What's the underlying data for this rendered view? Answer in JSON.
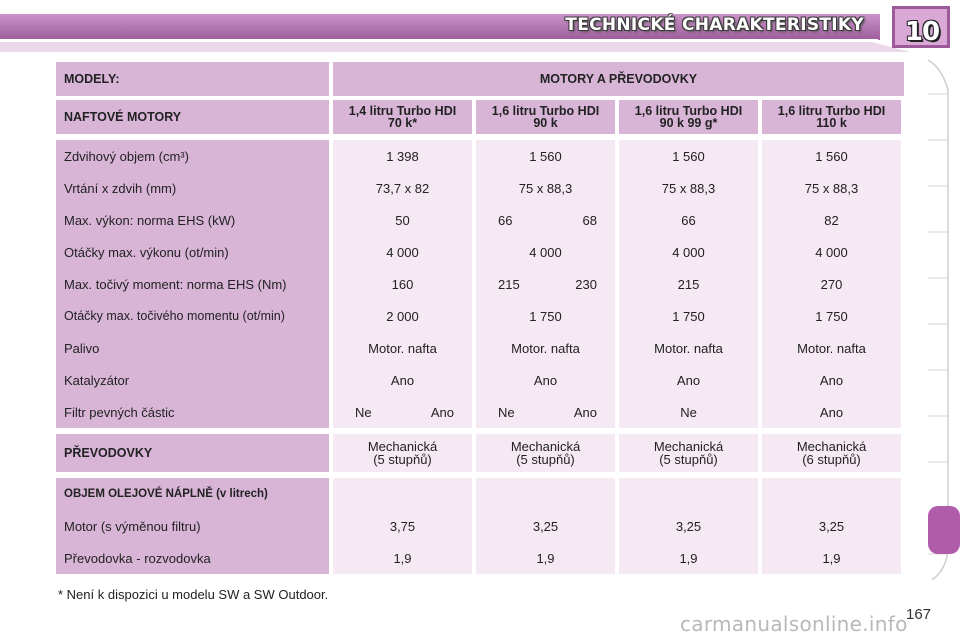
{
  "header": {
    "title": "TECHNICKÉ CHARAKTERISTIKY",
    "chapter_number": "10",
    "band_color": "#b77db6"
  },
  "table": {
    "models_label": "MODELY:",
    "models_value": "MOTORY A PŘEVODOVKY",
    "engines_label": "NAFTOVÉ MOTORY",
    "engines": [
      {
        "line1": "1,4 litru Turbo HDI",
        "line2": "70 k*"
      },
      {
        "line1": "1,6 litru Turbo HDI",
        "line2": "90 k"
      },
      {
        "line1": "1,6 litru Turbo HDI",
        "line2": "90 k 99 g*"
      },
      {
        "line1": "1,6 litru Turbo HDI",
        "line2": "110 k"
      }
    ],
    "spec_labels": [
      "Zdvihový objem (cm³)",
      "Vrtání x zdvih (mm)",
      "Max. výkon: norma EHS (kW)",
      "Otáčky max. výkonu (ot/min)",
      "Max. točivý moment: norma EHS (Nm)",
      "Otáčky max. točivého momentu (ot/min)",
      "Palivo",
      "Katalyzátor",
      "Filtr pevných částic"
    ],
    "spec_values": [
      [
        [
          "1 398"
        ],
        [
          "73,7 x 82"
        ],
        [
          "50"
        ],
        [
          "4 000"
        ],
        [
          "160"
        ],
        [
          "2 000"
        ],
        [
          "Motor. nafta"
        ],
        [
          "Ano"
        ],
        [
          "Ne",
          "Ano"
        ]
      ],
      [
        [
          "1 560"
        ],
        [
          "75 x 88,3"
        ],
        [
          "66",
          "68"
        ],
        [
          "4 000"
        ],
        [
          "215",
          "230"
        ],
        [
          "1 750"
        ],
        [
          "Motor. nafta"
        ],
        [
          "Ano"
        ],
        [
          "Ne",
          "Ano"
        ]
      ],
      [
        [
          "1 560"
        ],
        [
          "75 x 88,3"
        ],
        [
          "66"
        ],
        [
          "4 000"
        ],
        [
          "215"
        ],
        [
          "1 750"
        ],
        [
          "Motor. nafta"
        ],
        [
          "Ano"
        ],
        [
          "Ne"
        ]
      ],
      [
        [
          "1 560"
        ],
        [
          "75 x 88,3"
        ],
        [
          "82"
        ],
        [
          "4 000"
        ],
        [
          "270"
        ],
        [
          "1 750"
        ],
        [
          "Motor. nafta"
        ],
        [
          "Ano"
        ],
        [
          "Ano"
        ]
      ]
    ],
    "gearbox_label": "PŘEVODOVKY",
    "gearboxes": [
      {
        "line1": "Mechanická",
        "line2": "(5 stupňů)"
      },
      {
        "line1": "Mechanická",
        "line2": "(5 stupňů)"
      },
      {
        "line1": "Mechanická",
        "line2": "(5 stupňů)"
      },
      {
        "line1": "Mechanická",
        "line2": "(6 stupňů)"
      }
    ],
    "oil_label": "OBJEM OLEJOVÉ NÁPLNĚ (v litrech)",
    "oil_rows": [
      "Motor (s výměnou filtru)",
      "Převodovka - rozvodovka"
    ],
    "oil_values": [
      [
        "3,75",
        "1,9"
      ],
      [
        "3,25",
        "1,9"
      ],
      [
        "3,25",
        "1,9"
      ],
      [
        "3,25",
        "1,9"
      ]
    ]
  },
  "footnote": "* Není k dispozici u modelu SW a SW Outdoor.",
  "page_number": "167",
  "watermark": "carmanualsonline.info",
  "colors": {
    "header_cell": "#d8b5d7",
    "value_cell": "#f5e9f3",
    "active_tab": "#b05ca8"
  }
}
